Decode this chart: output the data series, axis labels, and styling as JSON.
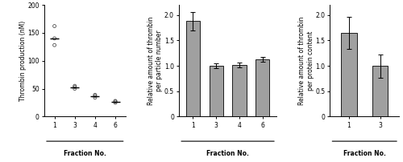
{
  "panel1": {
    "categories": [
      "1",
      "3",
      "4",
      "6"
    ],
    "scatter_points": [
      [
        162,
        140,
        128
      ],
      [
        55,
        53,
        50
      ],
      [
        39,
        37,
        34
      ],
      [
        28,
        27,
        25
      ]
    ],
    "medians": [
      140,
      53,
      37,
      27
    ],
    "ylabel": "Thrombin production (nM)",
    "xlabel": "Fraction No.",
    "ylim": [
      0,
      200
    ],
    "yticks": [
      0,
      50,
      100,
      150,
      200
    ]
  },
  "panel2": {
    "categories": [
      "1",
      "3",
      "4",
      "6"
    ],
    "values": [
      1.88,
      1.0,
      1.02,
      1.13
    ],
    "errors": [
      0.18,
      0.05,
      0.05,
      0.05
    ],
    "ylabel": "Relative amount of thrombin\nper particle number",
    "xlabel": "Fraction No.",
    "ylim": [
      0,
      2.2
    ],
    "yticks": [
      0,
      0.5,
      1.0,
      1.5,
      2.0
    ]
  },
  "panel3": {
    "categories": [
      "1",
      "3"
    ],
    "values": [
      1.65,
      1.0
    ],
    "errors": [
      0.32,
      0.23
    ],
    "ylabel": "Relative amount of thrombin\nper protein content",
    "xlabel": "Fraction No.",
    "ylim": [
      0,
      2.2
    ],
    "yticks": [
      0,
      0.5,
      1.0,
      1.5,
      2.0
    ]
  },
  "bar_color": "#a0a0a0",
  "scatter_color": "#505050",
  "median_color": "#000000",
  "font_size": 5.5,
  "tick_font_size": 5.5
}
